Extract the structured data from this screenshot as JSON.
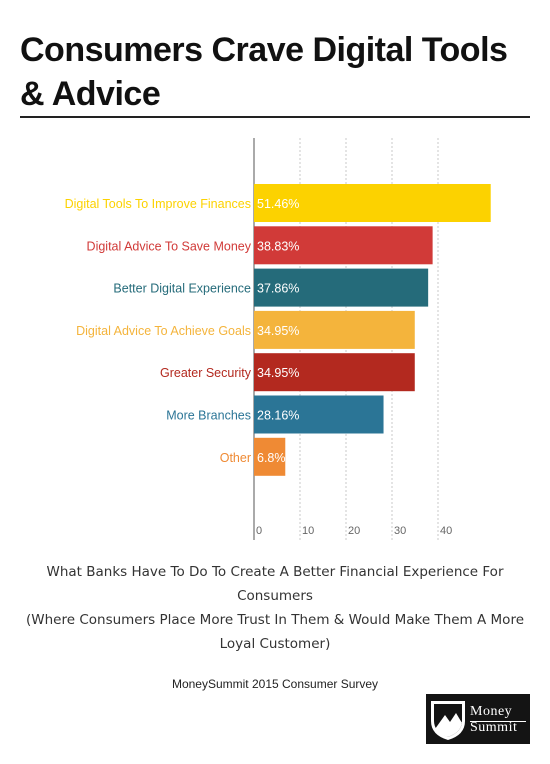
{
  "title": "Consumers Crave Digital Tools & Advice",
  "caption": {
    "line1": "What Banks Have To Do To Create A Better Financial Experience For Consumers",
    "line2": "(Where Consumers Place More Trust In Them & Would Make Them A More Loyal Customer)"
  },
  "source": "MoneySummit 2015 Consumer Survey",
  "logo": {
    "line1": "Money",
    "line2": "Summit"
  },
  "chart_data": {
    "type": "bar",
    "orientation": "horizontal",
    "categories": [
      "Digital Tools To Improve Finances",
      "Digital Advice To Save Money",
      "Better Digital Experience",
      "Digital Advice To Achieve Goals",
      "Greater Security",
      "More Branches",
      "Other"
    ],
    "values": [
      51.46,
      38.83,
      37.86,
      34.95,
      34.95,
      28.16,
      6.8
    ],
    "value_labels": [
      "51.46%",
      "38.83%",
      "37.86%",
      "34.95%",
      "34.95%",
      "28.16%",
      "6.8%"
    ],
    "colors": [
      "#FCD200",
      "#D13A38",
      "#256B7A",
      "#F4B43C",
      "#B3291F",
      "#2B7596",
      "#EF8A34"
    ],
    "xticks": [
      "0",
      "10",
      "20",
      "30",
      "40"
    ],
    "xlim": [
      0,
      55
    ],
    "grid": true,
    "title": "",
    "xlabel": "",
    "ylabel": ""
  }
}
